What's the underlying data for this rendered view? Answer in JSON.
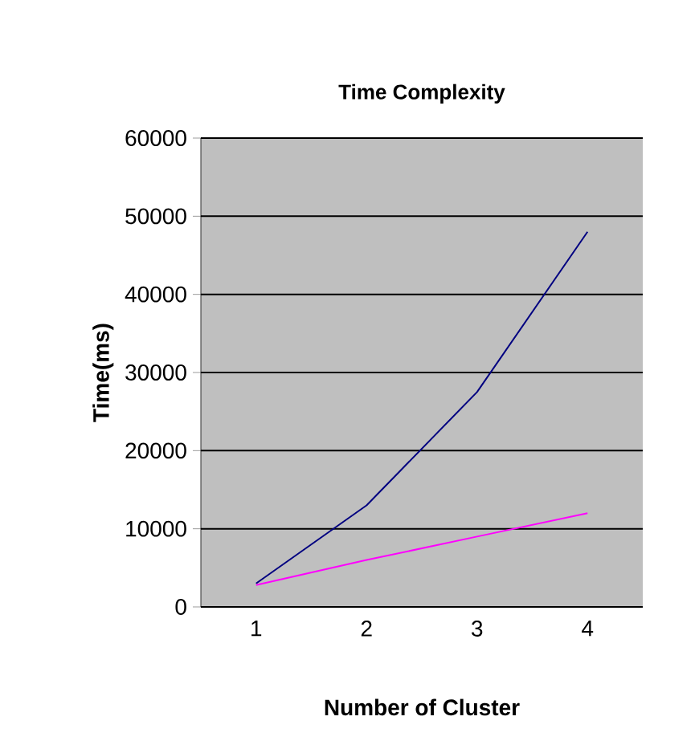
{
  "chart_data": {
    "type": "line",
    "title": "Time Complexity",
    "xlabel": "Number of Cluster",
    "ylabel": "Time(ms)",
    "categories": [
      "1",
      "2",
      "3",
      "4"
    ],
    "series": [
      {
        "color": "#000080",
        "values": [
          3000,
          13000,
          27500,
          48000
        ]
      },
      {
        "color": "#ff00ff",
        "values": [
          2800,
          6000,
          9000,
          12000
        ]
      }
    ],
    "ylim": [
      0,
      60000
    ],
    "yticks": [
      0,
      10000,
      20000,
      30000,
      40000,
      50000,
      60000
    ],
    "grid": "y",
    "marker": "none"
  }
}
